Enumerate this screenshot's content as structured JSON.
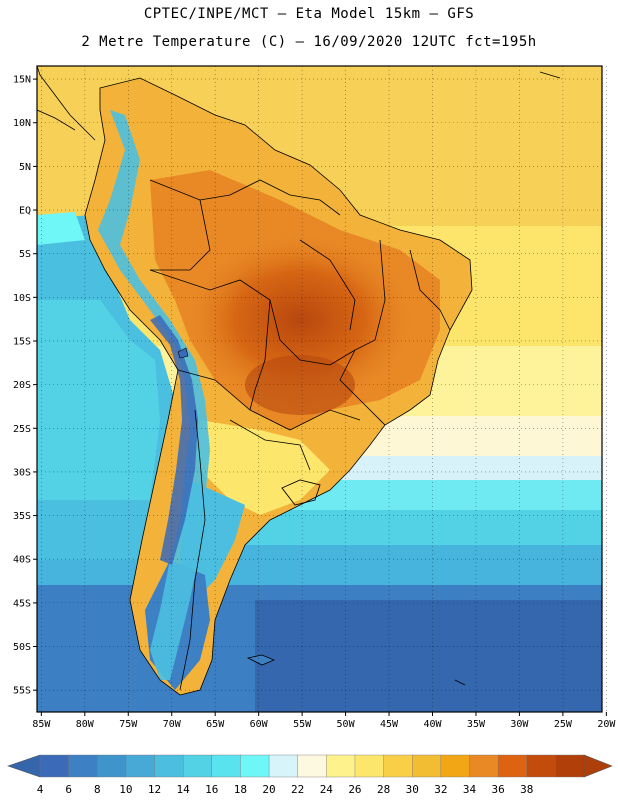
{
  "header": {
    "line1": "CPTEC/INPE/MCT –  Eta Model 15km – GFS",
    "line2": "2 Metre Temperature (C) – 16/09/2020 12UTC fct=195h"
  },
  "map": {
    "lat_labels": [
      "15N",
      "10N",
      "5N",
      "EQ",
      "5S",
      "10S",
      "15S",
      "20S",
      "25S",
      "30S",
      "35S",
      "40S",
      "45S",
      "50S",
      "55S"
    ],
    "lon_labels": [
      "85W",
      "80W",
      "75W",
      "70W",
      "65W",
      "60W",
      "55W",
      "50W",
      "45W",
      "40W",
      "35W",
      "30W",
      "25W",
      "20W"
    ],
    "lat_range": [
      -57.5,
      16.5
    ],
    "lon_range": [
      -85.5,
      -20.5
    ]
  },
  "colorbar": {
    "ticks": [
      "4",
      "6",
      "8",
      "10",
      "12",
      "14",
      "16",
      "18",
      "20",
      "22",
      "24",
      "26",
      "28",
      "30",
      "32",
      "34",
      "36",
      "38"
    ],
    "colors": [
      "#3a6ab8",
      "#3e80c4",
      "#3f94cc",
      "#46a9d6",
      "#4cbfe0",
      "#53d2e6",
      "#58e3ee",
      "#6ff6f7",
      "#d6f4fa",
      "#fdf8e0",
      "#fef28c",
      "#fde66c",
      "#f9cf48",
      "#f2bd32",
      "#f2a616",
      "#e88926",
      "#dd6313",
      "#c34b0c",
      "#b13f0a"
    ],
    "below_color": "#3565aa",
    "above_color": "#ae3f0b"
  }
}
